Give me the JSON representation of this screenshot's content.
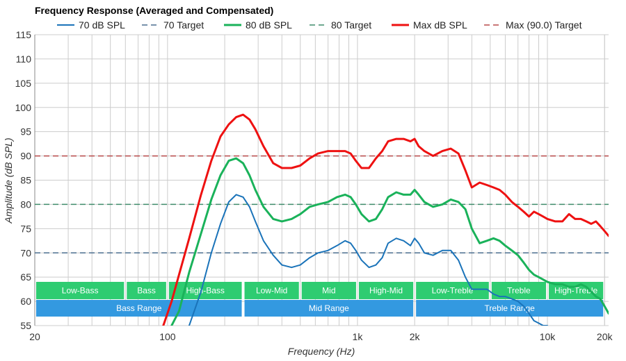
{
  "chart_data": {
    "type": "line",
    "title": "Frequency Response (Averaged and Compensated)",
    "xlabel": "Frequency (Hz)",
    "ylabel": "Amplitude (dB SPL)",
    "x_scale": "log",
    "xlim": [
      20,
      21000
    ],
    "ylim": [
      55,
      115
    ],
    "grid": true,
    "legend_position": "top",
    "y_ticks": [
      55,
      60,
      65,
      70,
      75,
      80,
      85,
      90,
      95,
      100,
      105,
      110,
      115
    ],
    "x_tick_labels": [
      {
        "value": 20,
        "label": "20"
      },
      {
        "value": 100,
        "label": "100"
      },
      {
        "value": 1000,
        "label": "1k"
      },
      {
        "value": 2000,
        "label": "2k"
      },
      {
        "value": 10000,
        "label": "10k"
      },
      {
        "value": 20000,
        "label": "20k"
      }
    ],
    "series": [
      {
        "name": "70 dB SPL",
        "color": "#1a73b9",
        "style": "solid",
        "x": [
          115,
          130,
          150,
          170,
          190,
          210,
          230,
          250,
          270,
          290,
          320,
          360,
          400,
          450,
          500,
          560,
          620,
          700,
          780,
          860,
          920,
          980,
          1050,
          1150,
          1250,
          1350,
          1450,
          1600,
          1750,
          1900,
          2000,
          2100,
          2250,
          2500,
          2800,
          3100,
          3400,
          3700,
          4000,
          4400,
          4800,
          5200,
          5600,
          6000,
          6500,
          7000,
          7500,
          8000,
          8500,
          9000,
          9500,
          10000
        ],
        "y": [
          52,
          55,
          62,
          70,
          76,
          80.5,
          82,
          81.5,
          79.5,
          76.5,
          72.5,
          69.5,
          67.5,
          67,
          67.5,
          69,
          70,
          70.5,
          71.5,
          72.5,
          72,
          70.5,
          68.5,
          67,
          67.5,
          69,
          72,
          73,
          72.5,
          71.5,
          73,
          72,
          70,
          69.5,
          70.5,
          70.5,
          68.5,
          65,
          62.5,
          62.5,
          62.5,
          61.5,
          61,
          61,
          60.5,
          60,
          59,
          57.5,
          56,
          55.5,
          55,
          55
        ]
      },
      {
        "name": "70 Target",
        "color": "#4a6d8f",
        "style": "dashed",
        "x": [
          20,
          21000
        ],
        "y": [
          70,
          70
        ]
      },
      {
        "name": "80 dB SPL",
        "color": "#1ab25a",
        "style": "solid",
        "x": [
          105,
          115,
          130,
          150,
          170,
          190,
          210,
          230,
          250,
          270,
          290,
          320,
          360,
          400,
          450,
          500,
          560,
          620,
          700,
          780,
          860,
          920,
          980,
          1050,
          1150,
          1250,
          1350,
          1450,
          1600,
          1750,
          1900,
          2000,
          2100,
          2250,
          2500,
          2800,
          3100,
          3400,
          3700,
          4000,
          4400,
          4800,
          5200,
          5600,
          6000,
          6500,
          7000,
          7500,
          8000,
          8500,
          9000,
          9500,
          10000,
          11000,
          12000,
          13000,
          14000,
          15000,
          16000,
          17000,
          18000,
          19000,
          20000,
          21000
        ],
        "y": [
          55,
          58,
          66,
          74,
          81,
          86,
          89,
          89.5,
          88.5,
          86,
          83,
          79.5,
          77,
          76.5,
          77,
          78,
          79.5,
          80,
          80.5,
          81.5,
          82,
          81.5,
          80,
          78,
          76.5,
          77,
          79,
          81.5,
          82.5,
          82,
          82,
          83,
          82,
          80.5,
          79.5,
          80,
          81,
          80.5,
          79,
          75,
          72,
          72.5,
          73,
          72.5,
          71.5,
          70.5,
          69.5,
          68,
          66.5,
          65.5,
          65,
          64.5,
          64,
          63.5,
          63.5,
          63,
          63,
          63.5,
          63,
          62,
          61,
          60.5,
          59,
          57.5
        ]
      },
      {
        "name": "80 Target",
        "color": "#3f8c6b",
        "style": "dashed",
        "x": [
          20,
          21000
        ],
        "y": [
          80,
          80
        ]
      },
      {
        "name": "Max dB SPL",
        "color": "#ee1111",
        "style": "solid",
        "x": [
          95,
          105,
          115,
          130,
          150,
          170,
          190,
          210,
          230,
          250,
          270,
          290,
          320,
          360,
          400,
          450,
          500,
          560,
          620,
          700,
          780,
          860,
          920,
          980,
          1050,
          1150,
          1250,
          1350,
          1450,
          1600,
          1750,
          1900,
          2000,
          2100,
          2250,
          2500,
          2800,
          3100,
          3400,
          3700,
          4000,
          4400,
          4800,
          5200,
          5600,
          6000,
          6500,
          7000,
          7500,
          8000,
          8500,
          9000,
          9500,
          10000,
          11000,
          12000,
          13000,
          14000,
          15000,
          16000,
          17000,
          18000,
          19000,
          20000,
          21000
        ],
        "y": [
          55,
          60,
          65.5,
          73,
          82,
          89,
          94,
          96.5,
          98,
          98.5,
          97.5,
          95.5,
          92,
          88.5,
          87.5,
          87.5,
          88,
          89.5,
          90.5,
          91,
          91,
          91,
          90.5,
          89,
          87.5,
          87.5,
          89.5,
          91,
          93,
          93.5,
          93.5,
          93,
          93.5,
          92,
          91,
          90,
          91,
          91.5,
          90.5,
          87,
          83.5,
          84.5,
          84,
          83.5,
          83,
          82,
          80.5,
          79.5,
          78.5,
          77.5,
          78.5,
          78,
          77.5,
          77,
          76.5,
          76.5,
          78,
          77,
          77,
          76.5,
          76,
          76.5,
          75.5,
          74.5,
          73.5
        ]
      },
      {
        "name": "Max (90.0) Target",
        "color": "#b84848",
        "style": "dashed",
        "x": [
          20,
          21000
        ],
        "y": [
          90,
          90
        ]
      }
    ],
    "bands_top": [
      {
        "label": "Low-Bass",
        "from": 20,
        "to": 60
      },
      {
        "label": "Bass",
        "from": 60,
        "to": 100
      },
      {
        "label": "High-Bass",
        "from": 100,
        "to": 250
      },
      {
        "label": "Low-Mid",
        "from": 250,
        "to": 500
      },
      {
        "label": "Mid",
        "from": 500,
        "to": 1000
      },
      {
        "label": "High-Mid",
        "from": 1000,
        "to": 2000
      },
      {
        "label": "Low-Treble",
        "from": 2000,
        "to": 5000
      },
      {
        "label": "Treble",
        "from": 5000,
        "to": 10000
      },
      {
        "label": "High-Treble",
        "from": 10000,
        "to": 20000
      }
    ],
    "bands_bottom": [
      {
        "label": "Bass Range",
        "from": 20,
        "to": 250
      },
      {
        "label": "Mid Range",
        "from": 250,
        "to": 2000
      },
      {
        "label": "Treble Range",
        "from": 2000,
        "to": 20000
      }
    ]
  },
  "colors": {
    "band_top": "#2ecc71",
    "band_bottom": "#3399e0",
    "grid": "#cccccc"
  }
}
